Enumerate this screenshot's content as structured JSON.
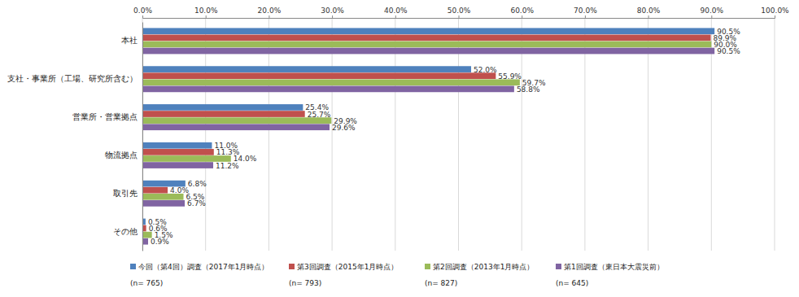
{
  "chart_data": {
    "type": "bar",
    "orientation": "horizontal",
    "categories": [
      "本社",
      "支社・事業所（工場、研究所含む）",
      "営業所・営業拠点",
      "物流拠点",
      "取引先",
      "その他"
    ],
    "series": [
      {
        "name": "今回（第4回）調査（2017年1月時点）",
        "n_label": "(n= 765)",
        "color": "#4f81bd",
        "values": [
          90.5,
          52.0,
          25.4,
          11.0,
          6.8,
          0.5
        ],
        "value_labels": [
          "90.5%",
          "52.0%",
          "25.4%",
          "11.0%",
          "6.8%",
          "0.5%"
        ]
      },
      {
        "name": "第3回調査（2015年1月時点）",
        "n_label": "(n= 793)",
        "color": "#c0504d",
        "values": [
          89.9,
          55.9,
          25.7,
          11.3,
          4.0,
          0.6
        ],
        "value_labels": [
          "89.9%",
          "55.9%",
          "25.7%",
          "11.3%",
          "4.0%",
          "0.6%"
        ]
      },
      {
        "name": "第2回調査（2013年1月時点）",
        "n_label": "(n= 827)",
        "color": "#9bbb59",
        "values": [
          90.0,
          59.7,
          29.9,
          14.0,
          6.5,
          1.5
        ],
        "value_labels": [
          "90.0%",
          "59.7%",
          "29.9%",
          "14.0%",
          "6.5%",
          "1.5%"
        ]
      },
      {
        "name": "第1回調査（東日本大震災前）",
        "n_label": "(n= 645)",
        "color": "#8064a2",
        "values": [
          90.5,
          58.8,
          29.6,
          11.2,
          6.7,
          0.9
        ],
        "value_labels": [
          "90.5%",
          "58.8%",
          "29.6%",
          "11.2%",
          "6.7%",
          "0.9%"
        ]
      }
    ],
    "xlim": [
      0,
      100
    ],
    "xticks": [
      {
        "value": 0,
        "label": "0.0%"
      },
      {
        "value": 10,
        "label": "10.0%"
      },
      {
        "value": 20,
        "label": "20.0%"
      },
      {
        "value": 30,
        "label": "30.0%"
      },
      {
        "value": 40,
        "label": "40.0%"
      },
      {
        "value": 50,
        "label": "50.0%"
      },
      {
        "value": 60,
        "label": "60.0%"
      },
      {
        "value": 70,
        "label": "70.0%"
      },
      {
        "value": 80,
        "label": "80.0%"
      },
      {
        "value": 90,
        "label": "90.0%"
      },
      {
        "value": 100,
        "label": "100.0%"
      }
    ],
    "grid": true,
    "data_labels": true,
    "legend": "bottom"
  }
}
